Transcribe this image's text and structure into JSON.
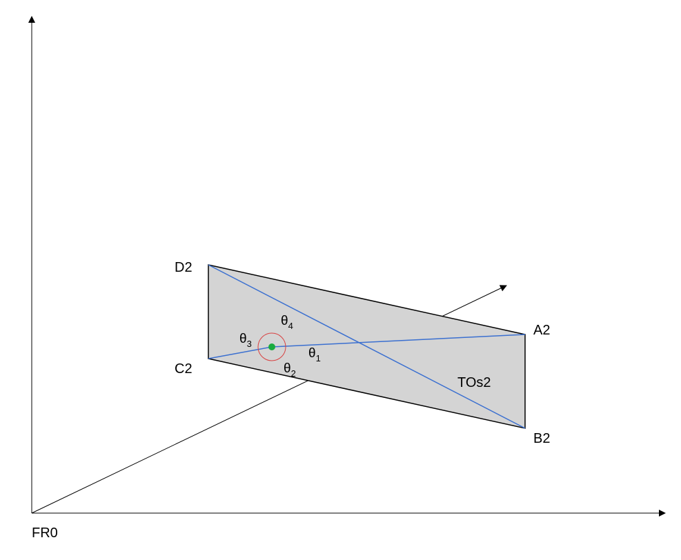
{
  "colors": {
    "axis": "#000000",
    "plane_fill": "#d4d4d4",
    "plane_edge": "#000000",
    "diagonal": "#3a6fd0",
    "center_point": "#1aab3e",
    "angle_circle": "#d84040"
  },
  "axes": {
    "origin_label": "FR0"
  },
  "plane": {
    "label": "TOs2",
    "vertices": {
      "a": "A2",
      "b": "B2",
      "c": "C2",
      "d": "D2"
    }
  },
  "angles": [
    {
      "symbol": "θ",
      "index": "1"
    },
    {
      "symbol": "θ",
      "index": "2"
    },
    {
      "symbol": "θ",
      "index": "3"
    },
    {
      "symbol": "θ",
      "index": "4"
    }
  ]
}
